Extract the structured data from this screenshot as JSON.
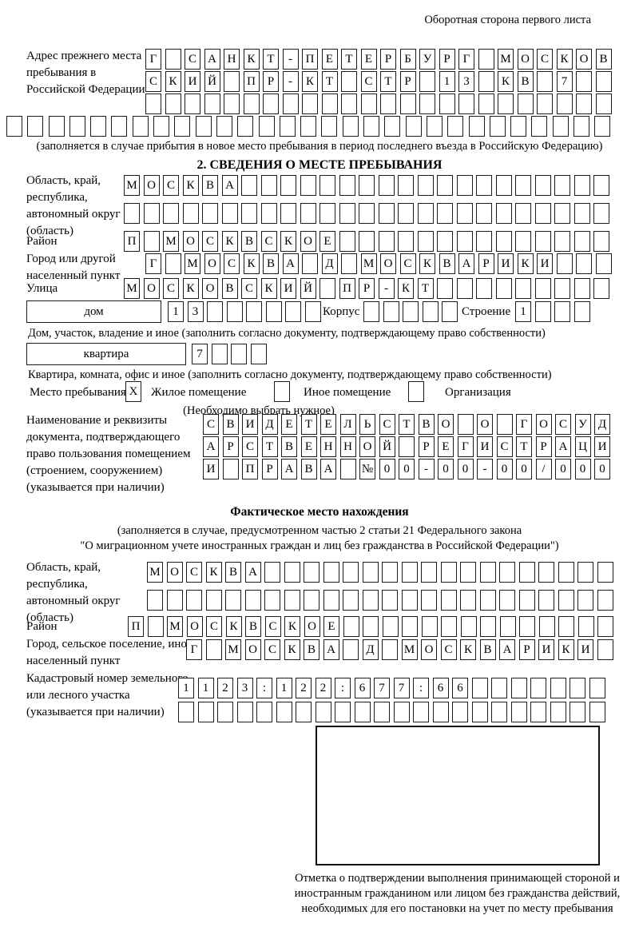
{
  "header": {
    "note": "Оборотная сторона первого листа"
  },
  "prev_address": {
    "label": "Адрес прежнего места пребывания в Российской Федерации",
    "line1": {
      "text": "Г САНКТ-ПЕТЕРБУРГ МОСКОВ",
      "count": 24
    },
    "line2": {
      "text": "СКИЙ ПР-КТ СТР 13 КВ 7",
      "count": 24
    },
    "line3": {
      "text": "",
      "count": 24
    },
    "line4": {
      "text": "",
      "count": 29
    },
    "note": "(заполняется в случае прибытия в новое место пребывания в период последнего въезда в Российскую Федерацию)"
  },
  "section2": {
    "title": "2. СВЕДЕНИЯ О МЕСТЕ ПРЕБЫВАНИЯ",
    "region": {
      "label": "Область, край, республика, автономный округ (область)",
      "line1": {
        "text": "МОСКВА",
        "count": 25
      },
      "line2": {
        "text": "",
        "count": 25
      }
    },
    "district": {
      "label": "Район",
      "line": {
        "text": "П МОСКВСКОЕ",
        "count": 25
      }
    },
    "city": {
      "label": "Город или другой населенный пункт",
      "line": {
        "text": "Г МОСКВА Д МОСКВАРИКИ",
        "count": 24
      }
    },
    "street": {
      "label": "Улица",
      "line": {
        "text": "МОСКОВСКИЙ ПР-КТ",
        "count": 25
      }
    },
    "house": {
      "box_label": "дом",
      "cells": {
        "text": "13",
        "count": 8
      },
      "korpus_label": "Корпус",
      "korpus_cells": {
        "text": "",
        "count": 5
      },
      "stroenie_label": "Строение",
      "stroenie_cells": {
        "text": "1",
        "count": 4
      },
      "note": "Дом, участок, владение и иное (заполнить согласно документу, подтверждающему право собственности)"
    },
    "apartment": {
      "box_label": "квартира",
      "cells": {
        "text": "7",
        "count": 4
      },
      "note": "Квартира, комната, офис и иное (заполнить согласно документу, подтверждающему право собственности)"
    },
    "stay_type": {
      "label": "Место пребывания:",
      "options": [
        {
          "label": "Жилое помещение",
          "box": {
            "text": "X",
            "count": 1
          }
        },
        {
          "label": "Иное помещение",
          "box": {
            "text": "",
            "count": 1
          }
        },
        {
          "label": "Организация",
          "box": {
            "text": "",
            "count": 1
          }
        }
      ],
      "note": "(Необходимо выбрать нужное)"
    },
    "doc": {
      "label": "Наименование и реквизиты документа, подтверждающего право пользования помещением (строением, сооружением) (указывается при наличии)",
      "line1": {
        "text": "СВИДЕТЕЛЬСТВО О ГОСУД",
        "count": 21
      },
      "line2": {
        "text": "АРСТВЕННОЙ РЕГИСТРАЦИ",
        "count": 21
      },
      "line3": {
        "text": "И ПРАВА №00-00-00/000",
        "count": 21
      }
    }
  },
  "actual_location": {
    "title": "Фактическое место нахождения",
    "note_line1": "(заполняется в случае, предусмотренном частью 2 статьи 21 Федерального закона",
    "note_line2": "\"О миграционном учете иностранных граждан и лиц без гражданства в Российской Федерации\")",
    "region": {
      "label": "Область, край, республика, автономный округ (область)",
      "line1": {
        "text": "МОСКВА",
        "count": 24
      },
      "line2": {
        "text": "",
        "count": 24
      }
    },
    "district": {
      "label": "Район",
      "line": {
        "text": "П МОСКВСКОЕ",
        "count": 25
      }
    },
    "city": {
      "label": "Город, сельское поселение, иной населенный пункт",
      "line": {
        "text": "Г МОСКВА Д МОСКВАРИКИ",
        "count": 22
      }
    },
    "cadastre": {
      "label": "Кадастровый номер земельного или лесного участка (указывается при наличии)",
      "line1": {
        "text": "1123:122:677:66",
        "count": 22
      },
      "line2": {
        "text": "",
        "count": 22
      }
    },
    "mark_note": "Отметка о подтверждении выполнения принимающей стороной и иностранным гражданином или лицом без гражданства действий, необходимых для его постановки на учет по месту пребывания"
  }
}
